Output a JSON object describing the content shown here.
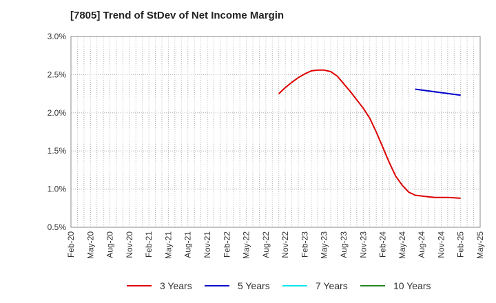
{
  "chart_data": {
    "type": "line",
    "title": "[7805]  Trend of StDev of Net Income Margin",
    "xlabel": "",
    "ylabel": "",
    "ylim": [
      0.5,
      3.0
    ],
    "yticks": [
      "0.5%",
      "1.0%",
      "1.5%",
      "2.0%",
      "2.5%",
      "3.0%"
    ],
    "ytick_values": [
      0.5,
      1.0,
      1.5,
      2.0,
      2.5,
      3.0
    ],
    "xtick_labels": [
      "Feb-20",
      "May-20",
      "Aug-20",
      "Nov-20",
      "Feb-21",
      "May-21",
      "Aug-21",
      "Nov-21",
      "Feb-22",
      "May-22",
      "Aug-22",
      "Nov-22",
      "Feb-23",
      "May-23",
      "Aug-23",
      "Nov-23",
      "Feb-24",
      "May-24",
      "Aug-24",
      "Nov-24",
      "Feb-25",
      "May-25"
    ],
    "x_months": 63,
    "grid": true,
    "legend_position": "bottom",
    "series": [
      {
        "name": "3 Years",
        "color": "#dd0000",
        "x": [
          "Oct-22",
          "Nov-22",
          "Dec-22",
          "Jan-23",
          "Feb-23",
          "Mar-23",
          "Apr-23",
          "May-23",
          "Jun-23",
          "Jul-23",
          "Aug-23",
          "Sep-23",
          "Oct-23",
          "Nov-23",
          "Dec-23",
          "Jan-24",
          "Feb-24",
          "Mar-24",
          "Apr-24",
          "May-24",
          "Jun-24",
          "Jul-24",
          "Aug-24",
          "Sep-24",
          "Oct-24",
          "Nov-24",
          "Dec-24",
          "Jan-25",
          "Feb-25"
        ],
        "x_index": [
          32,
          33,
          34,
          35,
          36,
          37,
          38,
          39,
          40,
          41,
          42,
          43,
          44,
          45,
          46,
          47,
          48,
          49,
          50,
          51,
          52,
          53,
          54,
          55,
          56,
          57,
          58,
          59,
          60
        ],
        "values": [
          2.25,
          2.33,
          2.4,
          2.46,
          2.51,
          2.55,
          2.56,
          2.56,
          2.54,
          2.48,
          2.38,
          2.28,
          2.17,
          2.06,
          1.93,
          1.75,
          1.55,
          1.35,
          1.17,
          1.05,
          0.96,
          0.92,
          0.91,
          0.9,
          0.89,
          0.89,
          0.89,
          0.885,
          0.88
        ]
      },
      {
        "name": "5 Years",
        "color": "#0000cc",
        "x": [
          "Jul-24",
          "Feb-25"
        ],
        "x_index": [
          53,
          60
        ],
        "values": [
          2.31,
          2.23
        ]
      },
      {
        "name": "7 Years",
        "color": "#00e5ee",
        "x": [],
        "x_index": [],
        "values": []
      },
      {
        "name": "10 Years",
        "color": "#228822",
        "x": [],
        "x_index": [],
        "values": []
      }
    ]
  }
}
